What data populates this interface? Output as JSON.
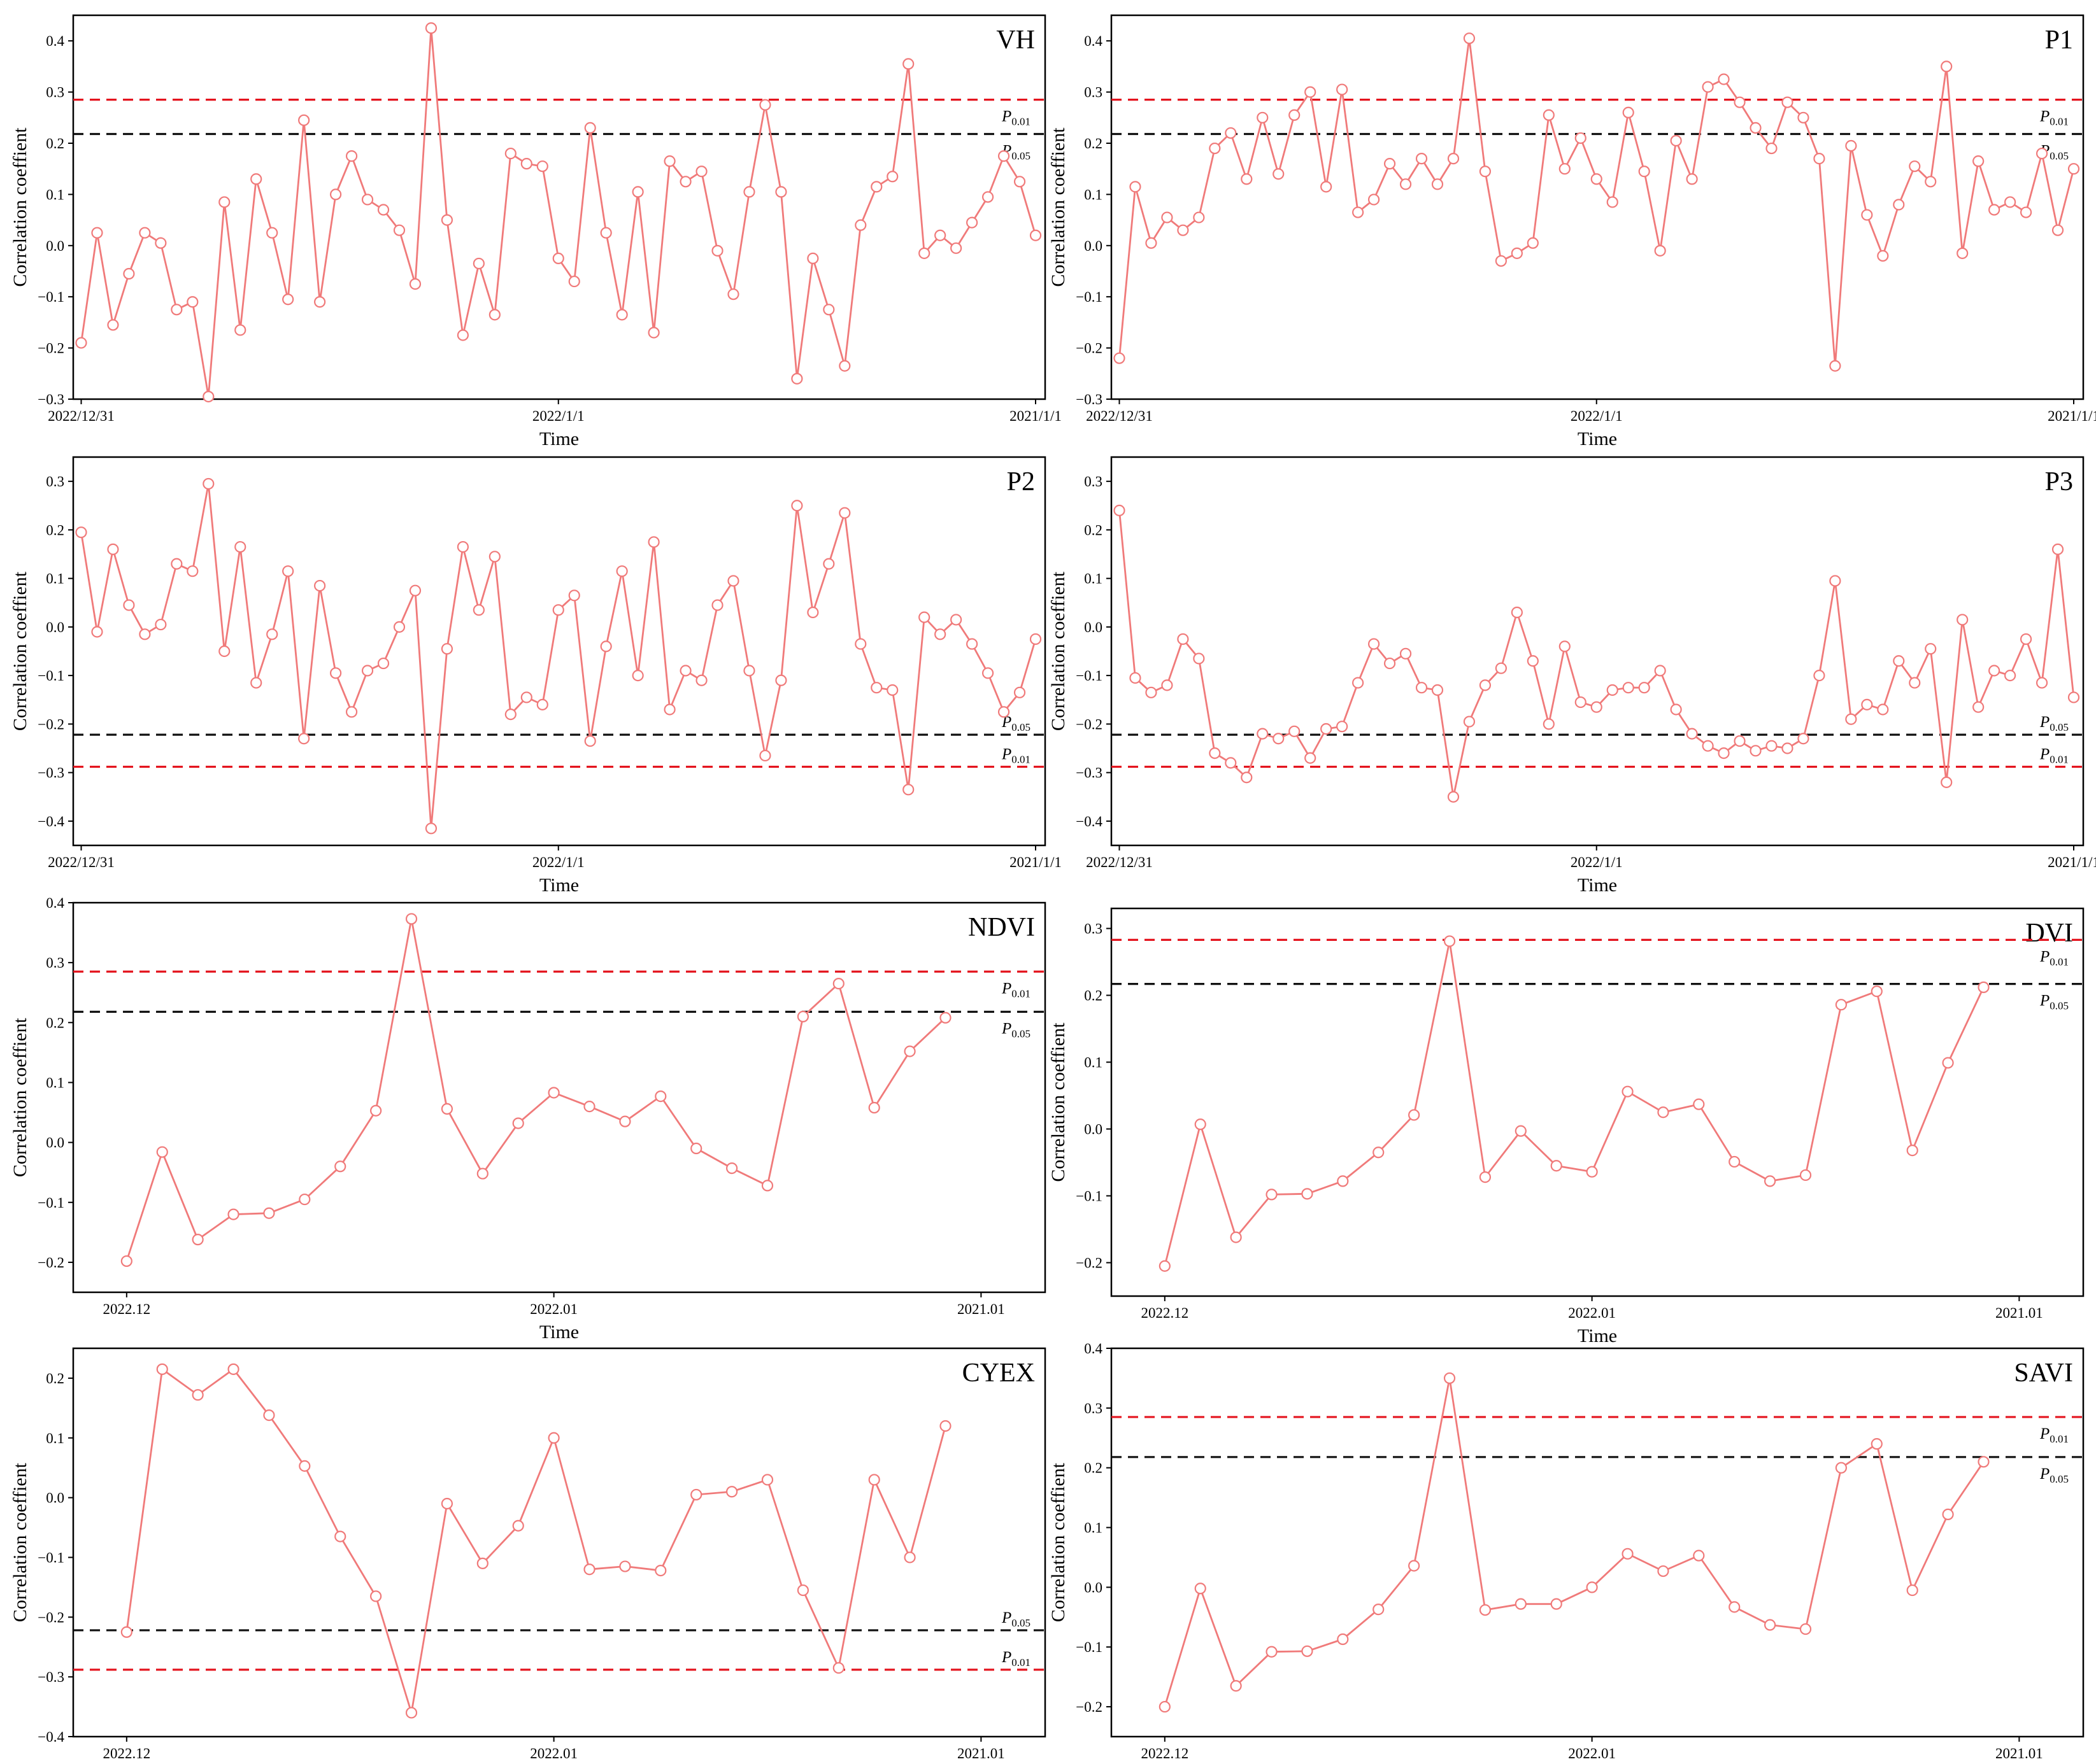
{
  "colors": {
    "series": "#f07a7a",
    "marker_fill": "#ffffff",
    "p001_line": "#e4141e",
    "p005_line": "#111111",
    "frame": "#000000"
  },
  "chart_data": [
    {
      "type": "line",
      "title": "VH",
      "xlabel": "Time",
      "ylabel": "Correlation coeffient",
      "ylim": [
        -0.3,
        0.45
      ],
      "yticks": [
        -0.3,
        -0.2,
        -0.1,
        0.0,
        0.1,
        0.2,
        0.3,
        0.4
      ],
      "ytick_labels": [
        "−0.3",
        "−0.2",
        "−0.1",
        "0.0",
        "0.1",
        "0.2",
        "0.3",
        "0.4"
      ],
      "date_labels": [
        "2022/12/31",
        "2022/1/1",
        "2021/1/1"
      ],
      "x_range": [
        -0.5,
        60.6
      ],
      "x_label_positions": [
        0,
        30,
        60
      ],
      "thresholds": [
        {
          "label": "P",
          "sub": "0.01",
          "value": 0.285,
          "color": "red"
        },
        {
          "label": "P",
          "sub": "0.05",
          "value": 0.218,
          "color": "black"
        }
      ],
      "values": [
        -0.19,
        0.025,
        -0.155,
        -0.055,
        0.025,
        0.005,
        -0.125,
        -0.11,
        -0.295,
        0.085,
        -0.165,
        0.13,
        0.025,
        -0.105,
        0.245,
        -0.11,
        0.1,
        0.175,
        0.09,
        0.07,
        0.03,
        -0.075,
        0.425,
        0.05,
        -0.175,
        -0.035,
        -0.135,
        0.18,
        0.16,
        0.155,
        -0.025,
        -0.07,
        0.23,
        0.025,
        -0.135,
        0.105,
        -0.17,
        0.165,
        0.125,
        0.145,
        -0.01,
        -0.095,
        0.105,
        0.275,
        0.105,
        -0.26,
        -0.025,
        -0.125,
        -0.235,
        0.04,
        0.115,
        0.135,
        0.355,
        -0.015,
        0.02,
        -0.005,
        0.045,
        0.095,
        0.175,
        0.125,
        0.02
      ]
    },
    {
      "type": "line",
      "title": "P1",
      "xlabel": "Time",
      "ylabel": "Correlation coeffient",
      "ylim": [
        -0.3,
        0.45
      ],
      "yticks": [
        -0.3,
        -0.2,
        -0.1,
        0.0,
        0.1,
        0.2,
        0.3,
        0.4
      ],
      "ytick_labels": [
        "−0.3",
        "−0.2",
        "−0.1",
        "0.0",
        "0.1",
        "0.2",
        "0.3",
        "0.4"
      ],
      "date_labels": [
        "2022/12/31",
        "2022/1/1",
        "2021/1/1"
      ],
      "x_range": [
        -0.5,
        60.6
      ],
      "x_label_positions": [
        0,
        30,
        60
      ],
      "thresholds": [
        {
          "label": "P",
          "sub": "0.01",
          "value": 0.285,
          "color": "red"
        },
        {
          "label": "P",
          "sub": "0.05",
          "value": 0.218,
          "color": "black"
        }
      ],
      "values": [
        -0.22,
        0.115,
        0.005,
        0.055,
        0.03,
        0.055,
        0.19,
        0.22,
        0.13,
        0.25,
        0.14,
        0.255,
        0.3,
        0.115,
        0.305,
        0.065,
        0.09,
        0.16,
        0.12,
        0.17,
        0.12,
        0.17,
        0.405,
        0.145,
        -0.03,
        -0.015,
        0.005,
        0.255,
        0.15,
        0.21,
        0.13,
        0.085,
        0.26,
        0.145,
        -0.01,
        0.205,
        0.13,
        0.31,
        0.325,
        0.28,
        0.23,
        0.19,
        0.28,
        0.25,
        0.17,
        -0.235,
        0.195,
        0.06,
        -0.02,
        0.08,
        0.155,
        0.125,
        0.35,
        -0.015,
        0.165,
        0.07,
        0.085,
        0.065,
        0.18,
        0.03,
        0.15
      ]
    },
    {
      "type": "line",
      "title": "P2",
      "xlabel": "Time",
      "ylabel": "Correlation coeffient",
      "ylim": [
        -0.45,
        0.35
      ],
      "yticks": [
        -0.4,
        -0.3,
        -0.2,
        -0.1,
        0.0,
        0.1,
        0.2,
        0.3
      ],
      "ytick_labels": [
        "−0.4",
        "−0.3",
        "−0.2",
        "−0.1",
        "0.0",
        "0.1",
        "0.2",
        "0.3"
      ],
      "date_labels": [
        "2022/12/31",
        "2022/1/1",
        "2021/1/1"
      ],
      "x_range": [
        -0.5,
        60.6
      ],
      "x_label_positions": [
        0,
        30,
        60
      ],
      "thresholds": [
        {
          "label": "P",
          "sub": "0.05",
          "value": -0.222,
          "color": "black"
        },
        {
          "label": "P",
          "sub": "0.01",
          "value": -0.288,
          "color": "red"
        }
      ],
      "values": [
        0.195,
        -0.01,
        0.16,
        0.045,
        -0.015,
        0.005,
        0.13,
        0.115,
        0.295,
        -0.05,
        0.165,
        -0.115,
        -0.015,
        0.115,
        -0.23,
        0.085,
        -0.095,
        -0.175,
        -0.09,
        -0.075,
        0.0,
        0.075,
        -0.415,
        -0.045,
        0.165,
        0.035,
        0.145,
        -0.18,
        -0.145,
        -0.16,
        0.035,
        0.065,
        -0.235,
        -0.04,
        0.115,
        -0.1,
        0.175,
        -0.17,
        -0.09,
        -0.11,
        0.045,
        0.095,
        -0.09,
        -0.265,
        -0.11,
        0.25,
        0.03,
        0.13,
        0.235,
        -0.035,
        -0.125,
        -0.13,
        -0.335,
        0.02,
        -0.015,
        0.015,
        -0.035,
        -0.095,
        -0.175,
        -0.135,
        -0.025
      ]
    },
    {
      "type": "line",
      "title": "P3",
      "xlabel": "Time",
      "ylabel": "Correlation coeffient",
      "ylim": [
        -0.45,
        0.35
      ],
      "yticks": [
        -0.4,
        -0.3,
        -0.2,
        -0.1,
        0.0,
        0.1,
        0.2,
        0.3
      ],
      "ytick_labels": [
        "−0.4",
        "−0.3",
        "−0.2",
        "−0.1",
        "0.0",
        "0.1",
        "0.2",
        "0.3"
      ],
      "date_labels": [
        "2022/12/31",
        "2022/1/1",
        "2021/1/1"
      ],
      "x_range": [
        -0.5,
        60.6
      ],
      "x_label_positions": [
        0,
        30,
        60
      ],
      "thresholds": [
        {
          "label": "P",
          "sub": "0.05",
          "value": -0.222,
          "color": "black"
        },
        {
          "label": "P",
          "sub": "0.01",
          "value": -0.288,
          "color": "red"
        }
      ],
      "values": [
        0.24,
        -0.105,
        -0.135,
        -0.12,
        -0.025,
        -0.065,
        -0.26,
        -0.28,
        -0.31,
        -0.22,
        -0.23,
        -0.215,
        -0.27,
        -0.21,
        -0.205,
        -0.115,
        -0.035,
        -0.075,
        -0.055,
        -0.125,
        -0.13,
        -0.35,
        -0.195,
        -0.12,
        -0.085,
        0.03,
        -0.07,
        -0.2,
        -0.04,
        -0.155,
        -0.165,
        -0.13,
        -0.125,
        -0.125,
        -0.09,
        -0.17,
        -0.22,
        -0.245,
        -0.26,
        -0.235,
        -0.255,
        -0.245,
        -0.25,
        -0.23,
        -0.1,
        0.095,
        -0.19,
        -0.16,
        -0.17,
        -0.07,
        -0.115,
        -0.045,
        -0.32,
        0.015,
        -0.165,
        -0.09,
        -0.1,
        -0.025,
        -0.115,
        0.16,
        -0.145
      ]
    },
    {
      "type": "line",
      "title": "NDVI",
      "xlabel": "Time",
      "ylabel": "Correlation coeffient",
      "ylim": [
        -0.25,
        0.4
      ],
      "yticks": [
        -0.2,
        -0.1,
        0.0,
        0.1,
        0.2,
        0.3,
        0.4
      ],
      "ytick_labels": [
        "−0.2",
        "−0.1",
        "0.0",
        "0.1",
        "0.2",
        "0.3",
        "0.4"
      ],
      "date_labels": [
        "2022.12",
        "2022.01",
        "2021.01"
      ],
      "x_range": [
        -1.5,
        25.8
      ],
      "x_label_positions": [
        0,
        12,
        24
      ],
      "thresholds": [
        {
          "label": "P",
          "sub": "0.01",
          "value": 0.285,
          "color": "red"
        },
        {
          "label": "P",
          "sub": "0.05",
          "value": 0.218,
          "color": "black"
        }
      ],
      "values": [
        -0.198,
        -0.016,
        -0.162,
        -0.12,
        -0.118,
        -0.095,
        -0.04,
        0.053,
        0.373,
        0.056,
        -0.052,
        0.032,
        0.083,
        0.06,
        0.035,
        0.077,
        -0.01,
        -0.043,
        -0.072,
        0.21,
        0.265,
        0.058,
        0.152,
        0.208
      ]
    },
    {
      "type": "line",
      "title": "DVI",
      "xlabel": "Time",
      "ylabel": "Correlation coeffient",
      "ylim": [
        -0.25,
        0.33
      ],
      "yticks": [
        -0.2,
        -0.1,
        0.0,
        0.1,
        0.2,
        0.3
      ],
      "ytick_labels": [
        "−0.2",
        "−0.1",
        "0.0",
        "0.1",
        "0.2",
        "0.3"
      ],
      "date_labels": [
        "2022.12",
        "2022.01",
        "2021.01"
      ],
      "x_range": [
        -1.5,
        25.8
      ],
      "x_label_positions": [
        0,
        12,
        24
      ],
      "thresholds": [
        {
          "label": "P",
          "sub": "0.01",
          "value": 0.283,
          "color": "red"
        },
        {
          "label": "P",
          "sub": "0.05",
          "value": 0.217,
          "color": "black"
        }
      ],
      "values": [
        -0.205,
        0.007,
        -0.162,
        -0.098,
        -0.097,
        -0.078,
        -0.035,
        0.021,
        0.281,
        -0.072,
        -0.003,
        -0.055,
        -0.064,
        0.056,
        0.025,
        0.037,
        -0.049,
        -0.078,
        -0.069,
        0.186,
        0.206,
        -0.032,
        0.099,
        0.212
      ]
    },
    {
      "type": "line",
      "title": "CYEX",
      "xlabel": "",
      "ylabel": "Correlation coeffient",
      "ylim": [
        -0.4,
        0.25
      ],
      "yticks": [
        -0.4,
        -0.3,
        -0.2,
        -0.1,
        0.0,
        0.1,
        0.2
      ],
      "ytick_labels": [
        "−0.4",
        "−0.3",
        "−0.2",
        "−0.1",
        "0.0",
        "0.1",
        "0.2"
      ],
      "date_labels": [
        "2022.12",
        "2022.01",
        "2021.01"
      ],
      "x_range": [
        -1.5,
        25.8
      ],
      "x_label_positions": [
        0,
        12,
        24
      ],
      "thresholds": [
        {
          "label": "P",
          "sub": "0.05",
          "value": -0.222,
          "color": "black"
        },
        {
          "label": "P",
          "sub": "0.01",
          "value": -0.288,
          "color": "red"
        }
      ],
      "values": [
        -0.225,
        0.215,
        0.172,
        0.215,
        0.138,
        0.053,
        -0.065,
        -0.165,
        -0.36,
        -0.01,
        -0.11,
        -0.047,
        0.1,
        -0.12,
        -0.115,
        -0.122,
        0.005,
        0.01,
        0.03,
        -0.155,
        -0.285,
        0.03,
        -0.1,
        0.12
      ]
    },
    {
      "type": "line",
      "title": "SAVI",
      "xlabel": "",
      "ylabel": "Correlation coeffient",
      "ylim": [
        -0.25,
        0.4
      ],
      "yticks": [
        -0.2,
        -0.1,
        0.0,
        0.1,
        0.2,
        0.3,
        0.4
      ],
      "ytick_labels": [
        "−0.2",
        "−0.1",
        "0.0",
        "0.1",
        "0.2",
        "0.3",
        "0.4"
      ],
      "date_labels": [
        "2022.12",
        "2022.01",
        "2021.01"
      ],
      "x_range": [
        -1.5,
        25.8
      ],
      "x_label_positions": [
        0,
        12,
        24
      ],
      "thresholds": [
        {
          "label": "P",
          "sub": "0.01",
          "value": 0.285,
          "color": "red"
        },
        {
          "label": "P",
          "sub": "0.05",
          "value": 0.218,
          "color": "black"
        }
      ],
      "values": [
        -0.2,
        -0.002,
        -0.165,
        -0.108,
        -0.107,
        -0.087,
        -0.037,
        0.036,
        0.35,
        -0.038,
        -0.028,
        -0.028,
        0.0,
        0.056,
        0.027,
        0.053,
        -0.033,
        -0.063,
        -0.07,
        0.2,
        0.24,
        -0.005,
        0.122,
        0.21
      ]
    }
  ]
}
